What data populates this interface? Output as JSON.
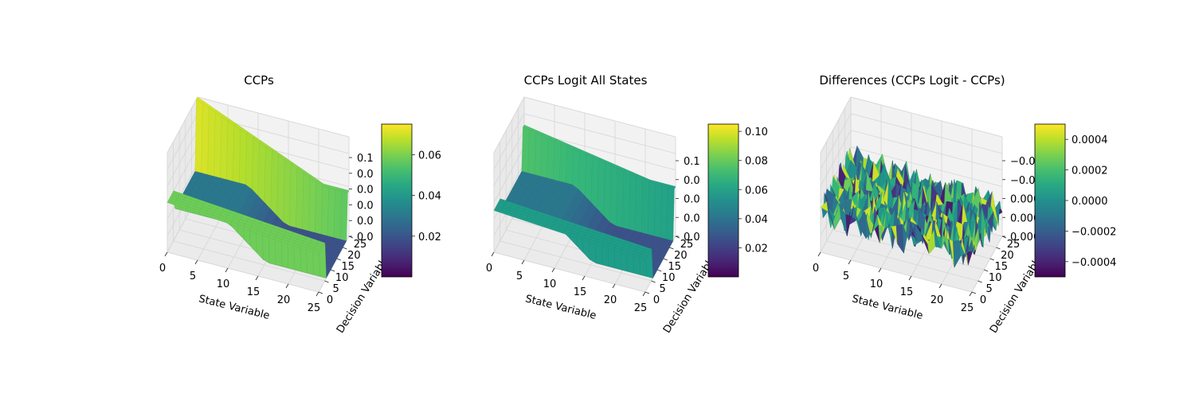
{
  "figure": {
    "colormap": "viridis"
  },
  "chart_data": [
    {
      "type": "surface3d",
      "title": "CCPs",
      "xlabel": "State Variable",
      "ylabel": "Decision Variable",
      "xticks": [
        "0",
        "5",
        "10",
        "15",
        "20",
        "25"
      ],
      "yticks": [
        "0",
        "5",
        "10",
        "15",
        "20",
        "25"
      ],
      "zticks": [
        "0.00",
        "0.02",
        "0.04",
        "0.06",
        "0.08",
        "0.10",
        "0.12"
      ],
      "zticks_display": [
        "0.0",
        "0.0",
        "0.0",
        "0.0",
        "0.0",
        "0.1"
      ],
      "colorbar_ticks": [
        "0.02",
        "0.04",
        "0.06"
      ],
      "colorbar_range": [
        0.0,
        0.075
      ],
      "x_range": [
        0,
        25
      ],
      "y_range": [
        0,
        25
      ],
      "z_range": [
        0.0,
        0.13
      ],
      "surface": {
        "description_values": {
          "wall_high_x_low": 0.12,
          "wall_high_x_high": 0.058,
          "wall_step_low": 0.035,
          "plateau_low_y": 0.06,
          "floor_min": 0.0
        }
      }
    },
    {
      "type": "surface3d",
      "title": "CCPs Logit All States",
      "xlabel": "State Variable",
      "ylabel": "Decision Variable",
      "xticks": [
        "0",
        "5",
        "10",
        "15",
        "20",
        "25"
      ],
      "yticks": [
        "0",
        "5",
        "10",
        "15",
        "20",
        "25"
      ],
      "zticks_display": [
        "0.0",
        "0.0",
        "0.0",
        "0.0",
        "0.1"
      ],
      "colorbar_ticks": [
        "0.02",
        "0.04",
        "0.06",
        "0.08",
        "0.10"
      ],
      "colorbar_range": [
        0.0,
        0.105
      ],
      "x_range": [
        0,
        25
      ],
      "y_range": [
        0,
        25
      ],
      "z_range": [
        0.0,
        0.13
      ],
      "surface": {
        "description_values": {
          "wall_high_x_low": 0.085,
          "wall_high_x_high": 0.06,
          "wall_step_low": 0.035,
          "plateau_low_y": 0.05,
          "floor_min": 0.0
        }
      }
    },
    {
      "type": "surface3d",
      "title": "Differences (CCPs Logit - CCPs)",
      "xlabel": "State Variable",
      "ylabel": "Decision Variable",
      "xticks": [
        "0",
        "5",
        "10",
        "15",
        "20",
        "25"
      ],
      "yticks": [
        "0",
        "5",
        "10",
        "15",
        "20",
        "25"
      ],
      "zticks_display": [
        "0.000",
        "0.000",
        "0.000",
        "−0.000",
        "−0.000"
      ],
      "colorbar_ticks": [
        "0.0004",
        "0.0002",
        "0.0000",
        "−0.0002",
        "−0.0004"
      ],
      "colorbar_range": [
        -0.0005,
        0.0005
      ],
      "x_range": [
        0,
        25
      ],
      "y_range": [
        0,
        25
      ],
      "z_range": [
        -0.0005,
        0.0005
      ],
      "surface": {
        "description_values": {
          "noise_amplitude": 0.0005
        }
      }
    }
  ]
}
